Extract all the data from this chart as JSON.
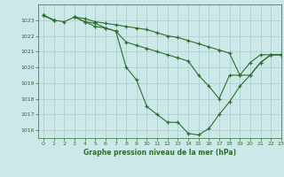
{
  "title": "Graphe pression niveau de la mer (hPa)",
  "bg_color": "#cce8e8",
  "grid_color": "#aacccc",
  "line_color": "#2d6e2d",
  "xlim": [
    -0.5,
    23
  ],
  "ylim": [
    1015.5,
    1024.0
  ],
  "yticks": [
    1016,
    1017,
    1018,
    1019,
    1020,
    1021,
    1022,
    1023
  ],
  "xticks": [
    0,
    1,
    2,
    3,
    4,
    5,
    6,
    7,
    8,
    9,
    10,
    11,
    12,
    13,
    14,
    15,
    16,
    17,
    18,
    19,
    20,
    21,
    22,
    23
  ],
  "series": [
    [
      1023.3,
      1023.0,
      1022.9,
      1023.2,
      1023.1,
      1022.9,
      1022.8,
      1022.7,
      1022.6,
      1022.5,
      1022.4,
      1022.2,
      1022.0,
      1021.9,
      1021.7,
      1021.5,
      1021.3,
      1021.1,
      1020.9,
      1019.5,
      1020.3,
      1020.8,
      1020.8,
      1020.8
    ],
    [
      1023.3,
      1023.0,
      null,
      1023.2,
      1022.9,
      1022.8,
      1022.5,
      1022.3,
      1020.0,
      1019.2,
      1017.5,
      1017.0,
      1016.5,
      1016.5,
      1015.8,
      1015.7,
      1016.1,
      1017.0,
      1017.8,
      1018.8,
      1019.5,
      1020.3,
      1020.8,
      1020.8
    ],
    [
      1023.3,
      1023.0,
      null,
      1023.2,
      1022.9,
      1022.6,
      1022.5,
      1022.3,
      1021.6,
      1021.4,
      1021.2,
      1021.0,
      1020.8,
      1020.6,
      1020.4,
      1019.5,
      1018.8,
      1018.0,
      1019.5,
      1019.5,
      1019.5,
      1020.3,
      1020.8,
      1020.8
    ]
  ]
}
